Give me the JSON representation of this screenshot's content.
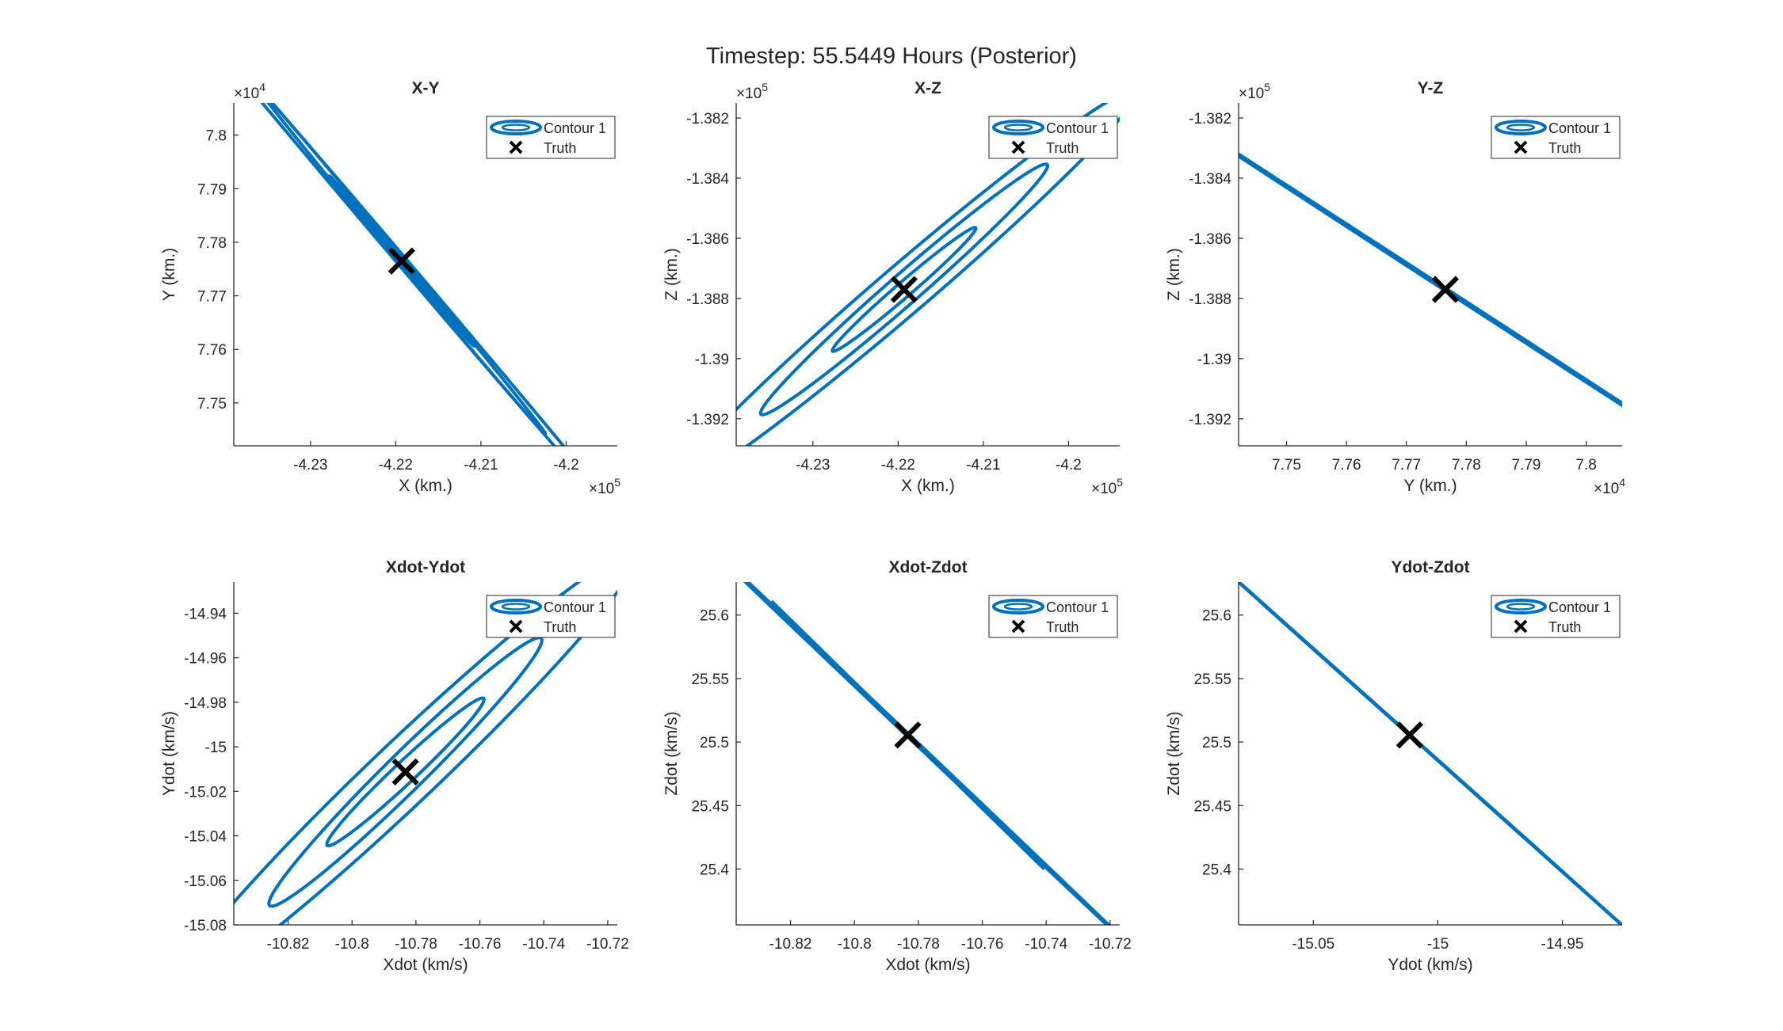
{
  "figure": {
    "title": "Timestep: 55.5449 Hours (Posterior)"
  },
  "colors": {
    "contour": "#0072BD",
    "truth": "#000000",
    "axis": "#262626"
  },
  "legend": {
    "contour_label": "Contour 1",
    "truth_label": "Truth",
    "placement": "top-right"
  },
  "chart_data": [
    {
      "type": "contour",
      "title": "X-Y",
      "xlabel": "X (km.)",
      "ylabel": "Y (km.)",
      "xlim": [
        -423.9,
        -419.4
      ],
      "ylim": [
        7.742,
        7.806
      ],
      "xticks": [
        -423,
        -422,
        -421,
        -420
      ],
      "xtick_labels": [
        "-4.23",
        "-4.22",
        "-4.21",
        "-4.2"
      ],
      "yticks": [
        7.75,
        7.76,
        7.77,
        7.78,
        7.79,
        7.8
      ],
      "ytick_labels": [
        "7.75",
        "7.76",
        "7.77",
        "7.78",
        "7.79",
        "7.8"
      ],
      "xexp": "10^5",
      "yexp": "10^4",
      "truth": [
        -421.93,
        7.7765
      ],
      "contours": [
        {
          "rx": 0.84,
          "ry": 0.0158
        },
        {
          "rx": 1.68,
          "ry": 0.0322
        },
        {
          "rx": 2.72,
          "ry": 0.051
        }
      ],
      "ry_factor": 0.04
    },
    {
      "type": "contour",
      "title": "X-Z",
      "xlabel": "X (km.)",
      "ylabel": "Z (km.)",
      "xlim": [
        -423.9,
        -419.4
      ],
      "ylim": [
        -139.29,
        -138.15
      ],
      "xticks": [
        -423,
        -422,
        -421,
        -420
      ],
      "xtick_labels": [
        "-4.23",
        "-4.22",
        "-4.21",
        "-4.2"
      ],
      "yticks": [
        -139.2,
        -139.0,
        -138.8,
        -138.6,
        -138.4,
        -138.2
      ],
      "ytick_labels": [
        "-1.392",
        "-1.39",
        "-1.388",
        "-1.386",
        "-1.384",
        "-1.382"
      ],
      "xexp": "10^5",
      "yexp": "10^5",
      "truth": [
        -421.93,
        -138.77
      ],
      "contours": [
        {
          "rx": 0.84,
          "ry": 0.205
        },
        {
          "rx": 1.68,
          "ry": 0.415
        },
        {
          "rx": 2.72,
          "ry": 0.66
        }
      ],
      "ry_factor": 0.04
    },
    {
      "type": "contour",
      "title": "Y-Z",
      "xlabel": "Y (km.)",
      "ylabel": "Z (km.)",
      "xlim": [
        7.742,
        7.806
      ],
      "ylim": [
        -139.29,
        -138.15
      ],
      "xticks": [
        7.75,
        7.76,
        7.77,
        7.78,
        7.79,
        7.8
      ],
      "xtick_labels": [
        "7.75",
        "7.76",
        "7.77",
        "7.78",
        "7.79",
        "7.8"
      ],
      "yticks": [
        -139.2,
        -139.0,
        -138.8,
        -138.6,
        -138.4,
        -138.2
      ],
      "ytick_labels": [
        "-1.392",
        "-1.39",
        "-1.388",
        "-1.386",
        "-1.384",
        "-1.382"
      ],
      "xexp": "10^4",
      "yexp": "10^5",
      "truth": [
        7.7765,
        -138.77
      ],
      "contours": [
        {
          "rx": 0.0158,
          "ry": 0.205
        },
        {
          "rx": 0.0322,
          "ry": 0.415
        },
        {
          "rx": 0.051,
          "ry": 0.66
        }
      ],
      "ry_factor": 0.004
    },
    {
      "type": "contour",
      "title": "Xdot-Ydot",
      "xlabel": "Xdot (km/s)",
      "ylabel": "Ydot (km/s)",
      "xlim": [
        -10.837,
        -10.717
      ],
      "ylim": [
        -15.08,
        -14.926
      ],
      "xticks": [
        -10.82,
        -10.8,
        -10.78,
        -10.76,
        -10.74,
        -10.72
      ],
      "xtick_labels": [
        "-10.82",
        "-10.8",
        "-10.78",
        "-10.76",
        "-10.74",
        "-10.72"
      ],
      "yticks": [
        -15.08,
        -15.06,
        -15.04,
        -15.02,
        -15.0,
        -14.98,
        -14.96,
        -14.94
      ],
      "ytick_labels": [
        "-15.08",
        "-15.06",
        "-15.04",
        "-15.02",
        "-15",
        "-14.98",
        "-14.96",
        "-14.94"
      ],
      "xexp": "",
      "yexp": "",
      "truth": [
        -10.7833,
        -15.0113
      ],
      "contours": [
        {
          "rx": 0.0245,
          "ry": 0.033
        },
        {
          "rx": 0.0425,
          "ry": 0.06
        },
        {
          "rx": 0.072,
          "ry": 0.098
        }
      ],
      "ry_factor": 0.05
    },
    {
      "type": "contour",
      "title": "Xdot-Zdot",
      "xlabel": "Xdot (km/s)",
      "ylabel": "Zdot (km/s)",
      "xlim": [
        -10.837,
        -10.717
      ],
      "ylim": [
        25.356,
        25.626
      ],
      "xticks": [
        -10.82,
        -10.8,
        -10.78,
        -10.76,
        -10.74,
        -10.72
      ],
      "xtick_labels": [
        "-10.82",
        "-10.8",
        "-10.78",
        "-10.76",
        "-10.74",
        "-10.72"
      ],
      "yticks": [
        25.4,
        25.45,
        25.5,
        25.55,
        25.6
      ],
      "ytick_labels": [
        "25.4",
        "25.45",
        "25.5",
        "25.55",
        "25.6"
      ],
      "xexp": "",
      "yexp": "",
      "truth": [
        -10.7833,
        25.5055
      ],
      "contours": [
        {
          "rx": 0.0245,
          "ry": 0.058
        },
        {
          "rx": 0.0425,
          "ry": 0.105
        },
        {
          "rx": 0.072,
          "ry": 0.172
        }
      ],
      "ry_factor": 0.04
    },
    {
      "type": "contour",
      "title": "Ydot-Zdot",
      "xlabel": "Ydot (km/s)",
      "ylabel": "Zdot (km/s)",
      "xlim": [
        -15.08,
        -14.926
      ],
      "ylim": [
        25.356,
        25.626
      ],
      "xticks": [
        -15.05,
        -15.0,
        -14.95
      ],
      "xtick_labels": [
        "-15.05",
        "-15",
        "-14.95"
      ],
      "yticks": [
        25.4,
        25.45,
        25.5,
        25.55,
        25.6
      ],
      "ytick_labels": [
        "25.4",
        "25.45",
        "25.5",
        "25.55",
        "25.6"
      ],
      "xexp": "",
      "yexp": "",
      "truth": [
        -15.0113,
        25.5055
      ],
      "contours": [
        {
          "rx": 0.033,
          "ry": 0.058
        },
        {
          "rx": 0.06,
          "ry": 0.105
        },
        {
          "rx": 0.098,
          "ry": 0.172
        }
      ],
      "ry_factor": 0.004
    }
  ]
}
